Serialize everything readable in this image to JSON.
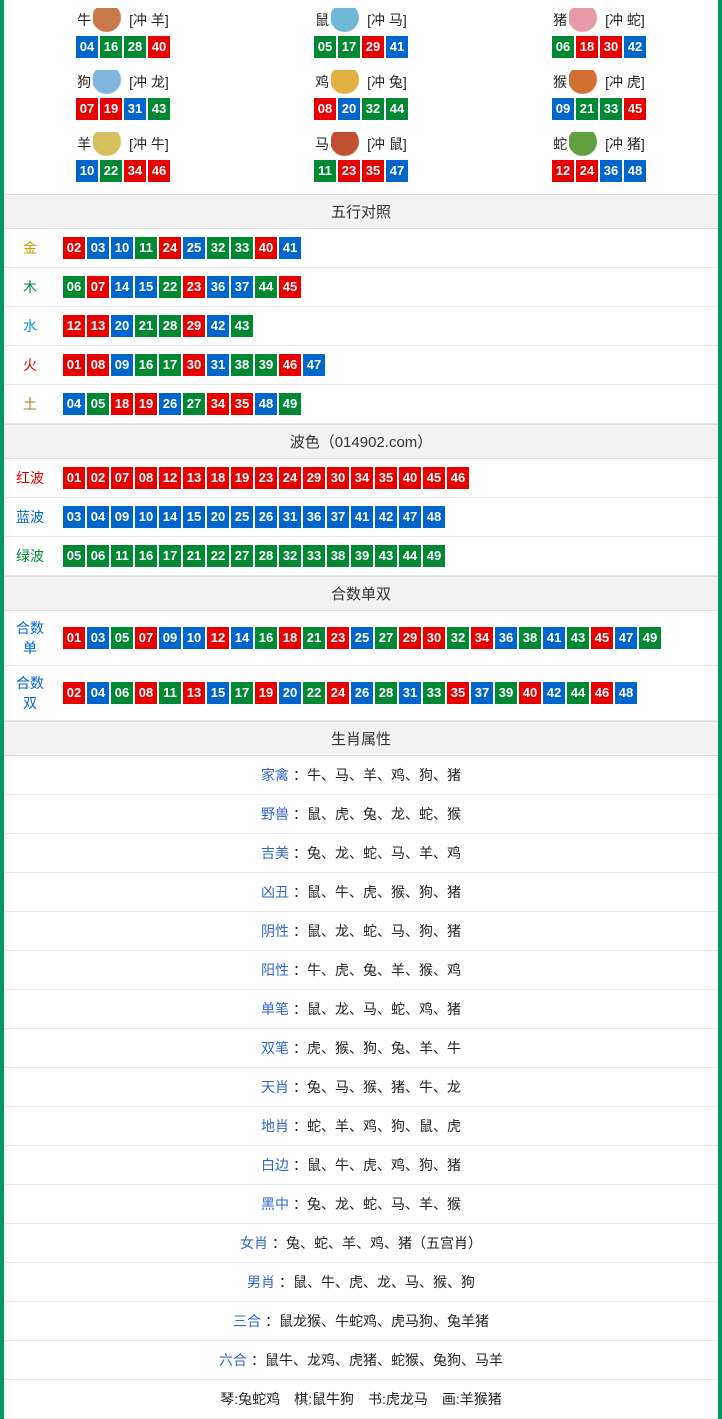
{
  "colors": {
    "red": "#e60000",
    "blue": "#0066cc",
    "green": "#008833",
    "border": "#009966"
  },
  "zodiac_icon_colors": {
    "牛": "#c97a4a",
    "鼠": "#6fb8d8",
    "猪": "#e89aa8",
    "狗": "#7fb3e0",
    "鸡": "#e0b040",
    "猴": "#d07030",
    "羊": "#d8c060",
    "马": "#c05030",
    "蛇": "#60a040"
  },
  "zodiac": [
    {
      "name": "牛",
      "chong": "[冲 羊]",
      "nums": [
        {
          "n": "04",
          "c": "blue"
        },
        {
          "n": "16",
          "c": "green"
        },
        {
          "n": "28",
          "c": "green"
        },
        {
          "n": "40",
          "c": "red"
        }
      ]
    },
    {
      "name": "鼠",
      "chong": "[冲 马]",
      "nums": [
        {
          "n": "05",
          "c": "green"
        },
        {
          "n": "17",
          "c": "green"
        },
        {
          "n": "29",
          "c": "red"
        },
        {
          "n": "41",
          "c": "blue"
        }
      ]
    },
    {
      "name": "猪",
      "chong": "[冲 蛇]",
      "nums": [
        {
          "n": "06",
          "c": "green"
        },
        {
          "n": "18",
          "c": "red"
        },
        {
          "n": "30",
          "c": "red"
        },
        {
          "n": "42",
          "c": "blue"
        }
      ]
    },
    {
      "name": "狗",
      "chong": "[冲 龙]",
      "nums": [
        {
          "n": "07",
          "c": "red"
        },
        {
          "n": "19",
          "c": "red"
        },
        {
          "n": "31",
          "c": "blue"
        },
        {
          "n": "43",
          "c": "green"
        }
      ]
    },
    {
      "name": "鸡",
      "chong": "[冲 兔]",
      "nums": [
        {
          "n": "08",
          "c": "red"
        },
        {
          "n": "20",
          "c": "blue"
        },
        {
          "n": "32",
          "c": "green"
        },
        {
          "n": "44",
          "c": "green"
        }
      ]
    },
    {
      "name": "猴",
      "chong": "[冲 虎]",
      "nums": [
        {
          "n": "09",
          "c": "blue"
        },
        {
          "n": "21",
          "c": "green"
        },
        {
          "n": "33",
          "c": "green"
        },
        {
          "n": "45",
          "c": "red"
        }
      ]
    },
    {
      "name": "羊",
      "chong": "[冲 牛]",
      "nums": [
        {
          "n": "10",
          "c": "blue"
        },
        {
          "n": "22",
          "c": "green"
        },
        {
          "n": "34",
          "c": "red"
        },
        {
          "n": "46",
          "c": "red"
        }
      ]
    },
    {
      "name": "马",
      "chong": "[冲 鼠]",
      "nums": [
        {
          "n": "11",
          "c": "green"
        },
        {
          "n": "23",
          "c": "red"
        },
        {
          "n": "35",
          "c": "red"
        },
        {
          "n": "47",
          "c": "blue"
        }
      ]
    },
    {
      "name": "蛇",
      "chong": "[冲 猪]",
      "nums": [
        {
          "n": "12",
          "c": "red"
        },
        {
          "n": "24",
          "c": "red"
        },
        {
          "n": "36",
          "c": "blue"
        },
        {
          "n": "48",
          "c": "blue"
        }
      ]
    }
  ],
  "wuxing_header": "五行对照",
  "wuxing": [
    {
      "key": "金",
      "cls": "key-gold",
      "nums": [
        {
          "n": "02",
          "c": "red"
        },
        {
          "n": "03",
          "c": "blue"
        },
        {
          "n": "10",
          "c": "blue"
        },
        {
          "n": "11",
          "c": "green"
        },
        {
          "n": "24",
          "c": "red"
        },
        {
          "n": "25",
          "c": "blue"
        },
        {
          "n": "32",
          "c": "green"
        },
        {
          "n": "33",
          "c": "green"
        },
        {
          "n": "40",
          "c": "red"
        },
        {
          "n": "41",
          "c": "blue"
        }
      ]
    },
    {
      "key": "木",
      "cls": "key-wood",
      "nums": [
        {
          "n": "06",
          "c": "green"
        },
        {
          "n": "07",
          "c": "red"
        },
        {
          "n": "14",
          "c": "blue"
        },
        {
          "n": "15",
          "c": "blue"
        },
        {
          "n": "22",
          "c": "green"
        },
        {
          "n": "23",
          "c": "red"
        },
        {
          "n": "36",
          "c": "blue"
        },
        {
          "n": "37",
          "c": "blue"
        },
        {
          "n": "44",
          "c": "green"
        },
        {
          "n": "45",
          "c": "red"
        }
      ]
    },
    {
      "key": "水",
      "cls": "key-water",
      "nums": [
        {
          "n": "12",
          "c": "red"
        },
        {
          "n": "13",
          "c": "red"
        },
        {
          "n": "20",
          "c": "blue"
        },
        {
          "n": "21",
          "c": "green"
        },
        {
          "n": "28",
          "c": "green"
        },
        {
          "n": "29",
          "c": "red"
        },
        {
          "n": "42",
          "c": "blue"
        },
        {
          "n": "43",
          "c": "green"
        }
      ]
    },
    {
      "key": "火",
      "cls": "key-fire",
      "nums": [
        {
          "n": "01",
          "c": "red"
        },
        {
          "n": "08",
          "c": "red"
        },
        {
          "n": "09",
          "c": "blue"
        },
        {
          "n": "16",
          "c": "green"
        },
        {
          "n": "17",
          "c": "green"
        },
        {
          "n": "30",
          "c": "red"
        },
        {
          "n": "31",
          "c": "blue"
        },
        {
          "n": "38",
          "c": "green"
        },
        {
          "n": "39",
          "c": "green"
        },
        {
          "n": "46",
          "c": "red"
        },
        {
          "n": "47",
          "c": "blue"
        }
      ]
    },
    {
      "key": "土",
      "cls": "key-earth",
      "nums": [
        {
          "n": "04",
          "c": "blue"
        },
        {
          "n": "05",
          "c": "green"
        },
        {
          "n": "18",
          "c": "red"
        },
        {
          "n": "19",
          "c": "red"
        },
        {
          "n": "26",
          "c": "blue"
        },
        {
          "n": "27",
          "c": "green"
        },
        {
          "n": "34",
          "c": "red"
        },
        {
          "n": "35",
          "c": "red"
        },
        {
          "n": "48",
          "c": "blue"
        },
        {
          "n": "49",
          "c": "green"
        }
      ]
    }
  ],
  "bose_header": "波色（014902.com）",
  "bose": [
    {
      "key": "红波",
      "cls": "key-red",
      "nums": [
        {
          "n": "01",
          "c": "red"
        },
        {
          "n": "02",
          "c": "red"
        },
        {
          "n": "07",
          "c": "red"
        },
        {
          "n": "08",
          "c": "red"
        },
        {
          "n": "12",
          "c": "red"
        },
        {
          "n": "13",
          "c": "red"
        },
        {
          "n": "18",
          "c": "red"
        },
        {
          "n": "19",
          "c": "red"
        },
        {
          "n": "23",
          "c": "red"
        },
        {
          "n": "24",
          "c": "red"
        },
        {
          "n": "29",
          "c": "red"
        },
        {
          "n": "30",
          "c": "red"
        },
        {
          "n": "34",
          "c": "red"
        },
        {
          "n": "35",
          "c": "red"
        },
        {
          "n": "40",
          "c": "red"
        },
        {
          "n": "45",
          "c": "red"
        },
        {
          "n": "46",
          "c": "red"
        }
      ]
    },
    {
      "key": "蓝波",
      "cls": "key-blue",
      "nums": [
        {
          "n": "03",
          "c": "blue"
        },
        {
          "n": "04",
          "c": "blue"
        },
        {
          "n": "09",
          "c": "blue"
        },
        {
          "n": "10",
          "c": "blue"
        },
        {
          "n": "14",
          "c": "blue"
        },
        {
          "n": "15",
          "c": "blue"
        },
        {
          "n": "20",
          "c": "blue"
        },
        {
          "n": "25",
          "c": "blue"
        },
        {
          "n": "26",
          "c": "blue"
        },
        {
          "n": "31",
          "c": "blue"
        },
        {
          "n": "36",
          "c": "blue"
        },
        {
          "n": "37",
          "c": "blue"
        },
        {
          "n": "41",
          "c": "blue"
        },
        {
          "n": "42",
          "c": "blue"
        },
        {
          "n": "47",
          "c": "blue"
        },
        {
          "n": "48",
          "c": "blue"
        }
      ]
    },
    {
      "key": "绿波",
      "cls": "key-green",
      "nums": [
        {
          "n": "05",
          "c": "green"
        },
        {
          "n": "06",
          "c": "green"
        },
        {
          "n": "11",
          "c": "green"
        },
        {
          "n": "16",
          "c": "green"
        },
        {
          "n": "17",
          "c": "green"
        },
        {
          "n": "21",
          "c": "green"
        },
        {
          "n": "22",
          "c": "green"
        },
        {
          "n": "27",
          "c": "green"
        },
        {
          "n": "28",
          "c": "green"
        },
        {
          "n": "32",
          "c": "green"
        },
        {
          "n": "33",
          "c": "green"
        },
        {
          "n": "38",
          "c": "green"
        },
        {
          "n": "39",
          "c": "green"
        },
        {
          "n": "43",
          "c": "green"
        },
        {
          "n": "44",
          "c": "green"
        },
        {
          "n": "49",
          "c": "green"
        }
      ]
    }
  ],
  "heshu_header": "合数单双",
  "heshu": [
    {
      "key": "合数单",
      "cls": "key-he",
      "nums": [
        {
          "n": "01",
          "c": "red"
        },
        {
          "n": "03",
          "c": "blue"
        },
        {
          "n": "05",
          "c": "green"
        },
        {
          "n": "07",
          "c": "red"
        },
        {
          "n": "09",
          "c": "blue"
        },
        {
          "n": "10",
          "c": "blue"
        },
        {
          "n": "12",
          "c": "red"
        },
        {
          "n": "14",
          "c": "blue"
        },
        {
          "n": "16",
          "c": "green"
        },
        {
          "n": "18",
          "c": "red"
        },
        {
          "n": "21",
          "c": "green"
        },
        {
          "n": "23",
          "c": "red"
        },
        {
          "n": "25",
          "c": "blue"
        },
        {
          "n": "27",
          "c": "green"
        },
        {
          "n": "29",
          "c": "red"
        },
        {
          "n": "30",
          "c": "red"
        },
        {
          "n": "32",
          "c": "green"
        },
        {
          "n": "34",
          "c": "red"
        },
        {
          "n": "36",
          "c": "blue"
        },
        {
          "n": "38",
          "c": "green"
        },
        {
          "n": "41",
          "c": "blue"
        },
        {
          "n": "43",
          "c": "green"
        },
        {
          "n": "45",
          "c": "red"
        },
        {
          "n": "47",
          "c": "blue"
        },
        {
          "n": "49",
          "c": "green"
        }
      ]
    },
    {
      "key": "合数双",
      "cls": "key-he",
      "nums": [
        {
          "n": "02",
          "c": "red"
        },
        {
          "n": "04",
          "c": "blue"
        },
        {
          "n": "06",
          "c": "green"
        },
        {
          "n": "08",
          "c": "red"
        },
        {
          "n": "11",
          "c": "green"
        },
        {
          "n": "13",
          "c": "red"
        },
        {
          "n": "15",
          "c": "blue"
        },
        {
          "n": "17",
          "c": "green"
        },
        {
          "n": "19",
          "c": "red"
        },
        {
          "n": "20",
          "c": "blue"
        },
        {
          "n": "22",
          "c": "green"
        },
        {
          "n": "24",
          "c": "red"
        },
        {
          "n": "26",
          "c": "blue"
        },
        {
          "n": "28",
          "c": "green"
        },
        {
          "n": "31",
          "c": "blue"
        },
        {
          "n": "33",
          "c": "green"
        },
        {
          "n": "35",
          "c": "red"
        },
        {
          "n": "37",
          "c": "blue"
        },
        {
          "n": "39",
          "c": "green"
        },
        {
          "n": "40",
          "c": "red"
        },
        {
          "n": "42",
          "c": "blue"
        },
        {
          "n": "44",
          "c": "green"
        },
        {
          "n": "46",
          "c": "red"
        },
        {
          "n": "48",
          "c": "blue"
        }
      ]
    }
  ],
  "attr_header": "生肖属性",
  "attrs": [
    {
      "k": "家禽",
      "v": "：牛、马、羊、鸡、狗、猪"
    },
    {
      "k": "野兽",
      "v": "：鼠、虎、兔、龙、蛇、猴"
    },
    {
      "k": "吉美",
      "v": "：兔、龙、蛇、马、羊、鸡"
    },
    {
      "k": "凶丑",
      "v": "：鼠、牛、虎、猴、狗、猪"
    },
    {
      "k": "阴性",
      "v": "：鼠、龙、蛇、马、狗、猪"
    },
    {
      "k": "阳性",
      "v": "：牛、虎、兔、羊、猴、鸡"
    },
    {
      "k": "单笔",
      "v": "：鼠、龙、马、蛇、鸡、猪"
    },
    {
      "k": "双笔",
      "v": "：虎、猴、狗、兔、羊、牛"
    },
    {
      "k": "天肖",
      "v": "：兔、马、猴、猪、牛、龙"
    },
    {
      "k": "地肖",
      "v": "：蛇、羊、鸡、狗、鼠、虎"
    },
    {
      "k": "白边",
      "v": "：鼠、牛、虎、鸡、狗、猪"
    },
    {
      "k": "黑中",
      "v": "：兔、龙、蛇、马、羊、猴"
    },
    {
      "k": "女肖",
      "v": "：兔、蛇、羊、鸡、猪（五宫肖）"
    },
    {
      "k": "男肖",
      "v": "：鼠、牛、虎、龙、马、猴、狗"
    },
    {
      "k": "三合",
      "v": "：鼠龙猴、牛蛇鸡、虎马狗、兔羊猪"
    },
    {
      "k": "六合",
      "v": "：鼠牛、龙鸡、虎猪、蛇猴、兔狗、马羊"
    }
  ],
  "footer_line": "琴:兔蛇鸡　棋:鼠牛狗　书:虎龙马　画:羊猴猪"
}
